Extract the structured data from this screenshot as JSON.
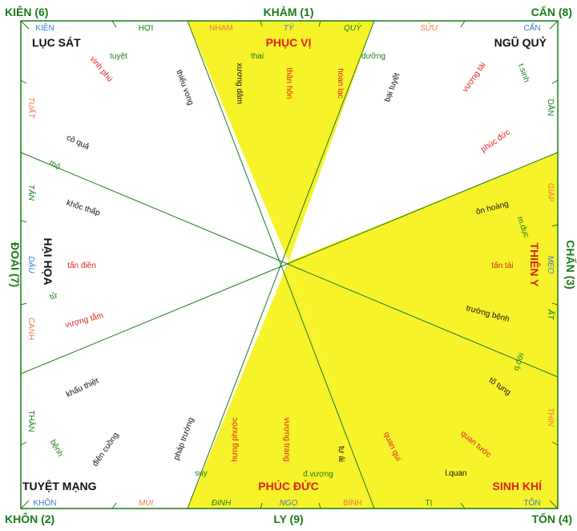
{
  "colors": {
    "green": "#1a7a1a",
    "yellow": "#f6f32a",
    "red": "#e0211a",
    "orange": "#ee7a4a",
    "blue": "#3a78c6",
    "black": "#111111"
  },
  "directions": {
    "kiem": "KIÊN (6)",
    "kham": "KHẢM (1)",
    "can": "CẤN (8)",
    "doai": "ĐOÀI (7)",
    "chan": "CHẤN (3)",
    "khon": "KHÔN (2)",
    "ly": "LY (9)",
    "ton": "TỐN (4)"
  },
  "sectors": {
    "luc_sat": "LỤC SÁT",
    "phuc_vi": "PHỤC VỊ",
    "ngu_quy": "NGŨ QUỶ",
    "hai_hoa": "HẠI HỌA",
    "thien_y": "THIÊN Y",
    "tuyet_mang": "TUYỆT MẠNG",
    "phuc_duc": "PHÚC ĐỨC",
    "sinh_khi": "SINH KHÍ"
  },
  "mountains": {
    "top": [
      "KIÊN",
      "HỢI",
      "NHAM",
      "TÝ",
      "QUÝ",
      "SỬU",
      "CẤN"
    ],
    "right": [
      "DẦN",
      "GIÁP",
      "MẸO",
      "ẤT",
      "THÌN"
    ],
    "bottom": [
      "KHÔN",
      "MÙI",
      "ĐINH",
      "NGỌ",
      "BÍNH",
      "TỊ",
      "TỐN"
    ],
    "left": [
      "TUẤT",
      "TÂN",
      "DẬU",
      "CANH",
      "THÂN"
    ]
  },
  "stars": {
    "tuyet": "tuyệt",
    "vinh_phu": "vinh phú",
    "thieu_vong": "thiếu vong",
    "co_qua": "cô quả",
    "mo": "mộ",
    "khoc_thap": "khốc thấp",
    "tan_dien": "tấn điền",
    "tu": "tử",
    "vuong_tam": "vượng tằm",
    "khau_thiet": "khẩu thiệt",
    "benh": "bệnh",
    "dien_cuong": "điên cuồng",
    "phap_truong": "pháp trường",
    "suy": "suy",
    "thai": "thai",
    "duong": "dưỡng",
    "xuong_dam": "xương dâm",
    "than_hon": "thân hôn",
    "hoan_lac": "hoan lạc",
    "bai_tuyet": "bại tuyệt",
    "vuong_tai": "vượng tài",
    "t_sinh": "t.sinh",
    "phuc_duc_star": "phúc đức",
    "on_hoang": "ôn hoàng",
    "m_duc": "m.dục",
    "tan_tai": "tấn tài",
    "truong_benh": "trường bệnh",
    "q_doi": "q.đới",
    "to_tung": "tố tụng",
    "quan_qui": "quan quí",
    "quan_tuoc": "quan tước",
    "l_quan": "l.quan",
    "hung_phuoc": "hưng phước",
    "vuong_trang": "vượng trang",
    "tu_ai": "tự ải",
    "d_vuong": "đ.vượng"
  }
}
